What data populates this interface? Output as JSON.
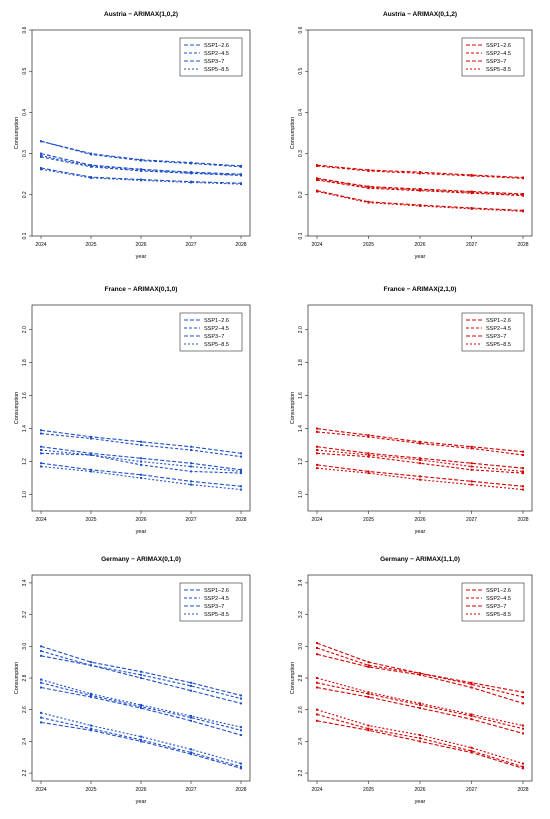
{
  "figure": {
    "colors": {
      "blue": "#1f4fc9",
      "red": "#d40000"
    }
  },
  "chart_data": [
    {
      "type": "line",
      "title": "Austria − ARIMAX(1,0,2)",
      "xlabel": "year",
      "ylabel": "Consumption",
      "x": [
        2024,
        2025,
        2026,
        2027,
        2028
      ],
      "ylim": [
        0.1,
        0.6
      ],
      "yticks": [
        0.1,
        0.2,
        0.3,
        0.4,
        0.5,
        0.6
      ],
      "color": "blue",
      "legend": {
        "position": "top-right",
        "entries": [
          "SSP1−2.6",
          "SSP2−4.5",
          "SSP3−7",
          "SSP5−8.5"
        ]
      },
      "series": [
        {
          "values": [
            0.33,
            0.3,
            0.285,
            0.278,
            0.27
          ]
        },
        {
          "values": [
            0.33,
            0.298,
            0.283,
            0.276,
            0.268
          ]
        },
        {
          "values": [
            0.3,
            0.272,
            0.262,
            0.255,
            0.25
          ]
        },
        {
          "values": [
            0.295,
            0.27,
            0.26,
            0.253,
            0.248
          ]
        },
        {
          "values": [
            0.292,
            0.268,
            0.258,
            0.252,
            0.247
          ]
        },
        {
          "values": [
            0.265,
            0.243,
            0.237,
            0.232,
            0.228
          ]
        },
        {
          "values": [
            0.262,
            0.241,
            0.235,
            0.23,
            0.226
          ]
        }
      ]
    },
    {
      "type": "line",
      "title": "Austria − ARIMAX(0,1,2)",
      "xlabel": "year",
      "ylabel": "Consumption",
      "x": [
        2024,
        2025,
        2026,
        2027,
        2028
      ],
      "ylim": [
        0.1,
        0.6
      ],
      "yticks": [
        0.1,
        0.2,
        0.3,
        0.4,
        0.5,
        0.6
      ],
      "color": "red",
      "legend": {
        "position": "top-right",
        "entries": [
          "SSP1−2.6",
          "SSP2−4.5",
          "SSP3−7",
          "SSP5−8.5"
        ]
      },
      "series": [
        {
          "values": [
            0.272,
            0.26,
            0.255,
            0.248,
            0.242
          ]
        },
        {
          "values": [
            0.27,
            0.258,
            0.252,
            0.246,
            0.24
          ]
        },
        {
          "values": [
            0.24,
            0.22,
            0.214,
            0.208,
            0.202
          ]
        },
        {
          "values": [
            0.238,
            0.218,
            0.212,
            0.206,
            0.2
          ]
        },
        {
          "values": [
            0.236,
            0.216,
            0.21,
            0.204,
            0.198
          ]
        },
        {
          "values": [
            0.21,
            0.183,
            0.175,
            0.168,
            0.162
          ]
        },
        {
          "values": [
            0.208,
            0.181,
            0.173,
            0.166,
            0.16
          ]
        }
      ]
    },
    {
      "type": "line",
      "title": "France − ARIMAX(0,1,0)",
      "xlabel": "year",
      "ylabel": "Consumption",
      "x": [
        2024,
        2025,
        2026,
        2027,
        2028
      ],
      "ylim": [
        0.9,
        2.15
      ],
      "yticks": [
        1.0,
        1.2,
        1.4,
        1.6,
        1.8,
        2.0
      ],
      "color": "blue",
      "legend": {
        "position": "top-right",
        "entries": [
          "SSP1−2.6",
          "SSP2−4.5",
          "SSP3−7",
          "SSP5−8.5"
        ]
      },
      "series": [
        {
          "values": [
            1.39,
            1.35,
            1.32,
            1.29,
            1.25
          ]
        },
        {
          "values": [
            1.37,
            1.34,
            1.3,
            1.27,
            1.23
          ]
        },
        {
          "values": [
            1.29,
            1.25,
            1.22,
            1.19,
            1.15
          ]
        },
        {
          "values": [
            1.27,
            1.24,
            1.2,
            1.17,
            1.14
          ]
        },
        {
          "values": [
            1.25,
            1.24,
            1.18,
            1.14,
            1.13
          ]
        },
        {
          "values": [
            1.19,
            1.15,
            1.12,
            1.08,
            1.05
          ]
        },
        {
          "values": [
            1.17,
            1.14,
            1.1,
            1.06,
            1.03
          ]
        }
      ]
    },
    {
      "type": "line",
      "title": "France − ARIMAX(2,1,0)",
      "xlabel": "year",
      "ylabel": "Consumption",
      "x": [
        2024,
        2025,
        2026,
        2027,
        2028
      ],
      "ylim": [
        0.9,
        2.15
      ],
      "yticks": [
        1.0,
        1.2,
        1.4,
        1.6,
        1.8,
        2.0
      ],
      "color": "red",
      "legend": {
        "position": "top-right",
        "entries": [
          "SSP1−2.6",
          "SSP2−4.5",
          "SSP3−7",
          "SSP5−8.5"
        ]
      },
      "series": [
        {
          "values": [
            1.4,
            1.36,
            1.32,
            1.29,
            1.26
          ]
        },
        {
          "values": [
            1.38,
            1.35,
            1.31,
            1.28,
            1.24
          ]
        },
        {
          "values": [
            1.29,
            1.25,
            1.22,
            1.19,
            1.16
          ]
        },
        {
          "values": [
            1.27,
            1.24,
            1.21,
            1.17,
            1.14
          ]
        },
        {
          "values": [
            1.25,
            1.23,
            1.19,
            1.15,
            1.13
          ]
        },
        {
          "values": [
            1.18,
            1.14,
            1.11,
            1.08,
            1.05
          ]
        },
        {
          "values": [
            1.16,
            1.13,
            1.09,
            1.06,
            1.03
          ]
        }
      ]
    },
    {
      "type": "line",
      "title": "Germany − ARIMAX(0,1,0)",
      "xlabel": "year",
      "ylabel": "Consumption",
      "x": [
        2024,
        2025,
        2026,
        2027,
        2028
      ],
      "ylim": [
        2.15,
        3.45
      ],
      "yticks": [
        2.2,
        2.4,
        2.6,
        2.8,
        3.0,
        3.2,
        3.4
      ],
      "color": "blue",
      "legend": {
        "position": "top-right",
        "entries": [
          "SSP1−2.6",
          "SSP2−4.5",
          "SSP3−7",
          "SSP5−8.5"
        ]
      },
      "series": [
        {
          "values": [
            3.0,
            2.9,
            2.84,
            2.77,
            2.69
          ]
        },
        {
          "values": [
            2.97,
            2.88,
            2.82,
            2.75,
            2.67
          ]
        },
        {
          "values": [
            2.94,
            2.88,
            2.8,
            2.72,
            2.64
          ]
        },
        {
          "values": [
            2.79,
            2.7,
            2.63,
            2.56,
            2.49
          ]
        },
        {
          "values": [
            2.77,
            2.69,
            2.62,
            2.55,
            2.47
          ]
        },
        {
          "values": [
            2.74,
            2.68,
            2.61,
            2.53,
            2.44
          ]
        },
        {
          "values": [
            2.58,
            2.5,
            2.43,
            2.35,
            2.26
          ]
        },
        {
          "values": [
            2.55,
            2.48,
            2.41,
            2.33,
            2.24
          ]
        },
        {
          "values": [
            2.52,
            2.47,
            2.4,
            2.32,
            2.23
          ]
        }
      ]
    },
    {
      "type": "line",
      "title": "Germany − ARIMAX(1,1,0)",
      "xlabel": "year",
      "ylabel": "Consumption",
      "x": [
        2024,
        2025,
        2026,
        2027,
        2028
      ],
      "ylim": [
        2.15,
        3.45
      ],
      "yticks": [
        2.2,
        2.4,
        2.6,
        2.8,
        3.0,
        3.2,
        3.4
      ],
      "color": "red",
      "legend": {
        "position": "top-right",
        "entries": [
          "SSP1−2.6",
          "SSP2−4.5",
          "SSP3−7",
          "SSP5−8.5"
        ]
      },
      "series": [
        {
          "values": [
            3.02,
            2.9,
            2.83,
            2.77,
            2.71
          ]
        },
        {
          "values": [
            2.99,
            2.88,
            2.83,
            2.76,
            2.68
          ]
        },
        {
          "values": [
            2.95,
            2.87,
            2.82,
            2.74,
            2.64
          ]
        },
        {
          "values": [
            2.8,
            2.71,
            2.64,
            2.57,
            2.5
          ]
        },
        {
          "values": [
            2.77,
            2.7,
            2.63,
            2.56,
            2.48
          ]
        },
        {
          "values": [
            2.74,
            2.68,
            2.61,
            2.54,
            2.45
          ]
        },
        {
          "values": [
            2.6,
            2.5,
            2.44,
            2.36,
            2.26
          ]
        },
        {
          "values": [
            2.57,
            2.48,
            2.42,
            2.34,
            2.24
          ]
        },
        {
          "values": [
            2.53,
            2.47,
            2.4,
            2.33,
            2.23
          ]
        }
      ]
    }
  ]
}
